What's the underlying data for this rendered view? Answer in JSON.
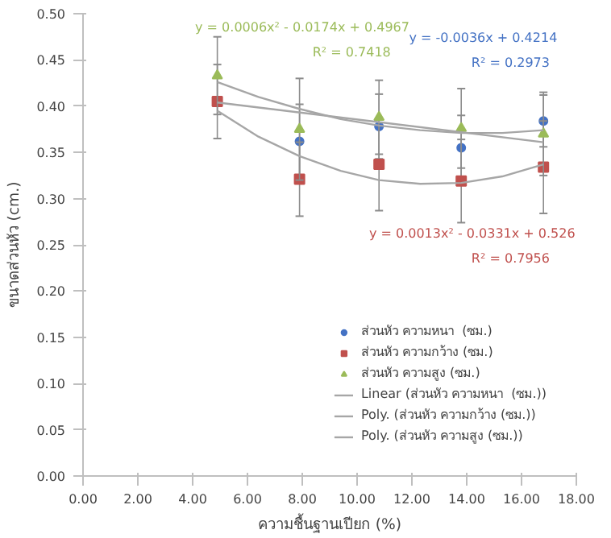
{
  "chart_data": {
    "type": "scatter",
    "xlabel": "ความชื้นฐานเปียก (%)",
    "ylabel": "ขนาดส่วนหัว (cm.)",
    "xlim": [
      0,
      18
    ],
    "ylim": [
      0,
      0.5
    ],
    "xticks": [
      {
        "value": 0,
        "label": "0.00"
      },
      {
        "value": 2,
        "label": "2.00"
      },
      {
        "value": 4,
        "label": "4.00"
      },
      {
        "value": 6,
        "label": "6.00"
      },
      {
        "value": 8,
        "label": "8.00"
      },
      {
        "value": 10,
        "label": "10.00"
      },
      {
        "value": 12,
        "label": "12.00"
      },
      {
        "value": 14,
        "label": "14.00"
      },
      {
        "value": 16,
        "label": "16.00"
      },
      {
        "value": 18,
        "label": "18.00"
      }
    ],
    "yticks": [
      {
        "value": 0,
        "label": "0.00"
      },
      {
        "value": 0.05,
        "label": "0.05"
      },
      {
        "value": 0.1,
        "label": "0.10"
      },
      {
        "value": 0.15,
        "label": "0.15"
      },
      {
        "value": 0.2,
        "label": "0.20"
      },
      {
        "value": 0.25,
        "label": "0.25"
      },
      {
        "value": 0.3,
        "label": "0.30"
      },
      {
        "value": 0.35,
        "label": "0.35"
      },
      {
        "value": 0.4,
        "label": "0.40"
      },
      {
        "value": 0.45,
        "label": "0.45"
      },
      {
        "value": 0.5,
        "label": "0.50"
      }
    ],
    "x": [
      4.9,
      7.9,
      10.8,
      13.8,
      16.8
    ],
    "grid": false,
    "legend": "bottom right",
    "series": [
      {
        "name": "ส่วนหัว ความหนา  (ซม.)",
        "color": "#4472c4",
        "marker": "circle",
        "values": [
          null,
          0.362,
          0.378,
          0.355,
          0.384
        ],
        "errors": [
          null,
          0.04,
          0.035,
          0.035,
          0.028
        ]
      },
      {
        "name": "ส่วนหัว ความกว้าง (ซม.)",
        "color": "#c0504d",
        "marker": "square",
        "values": [
          0.405,
          0.321,
          0.337,
          0.319,
          0.334
        ],
        "errors": [
          0.04,
          0.04,
          0.05,
          0.045,
          0.05
        ]
      },
      {
        "name": "ส่วนหัว ความสูง (ซม.)",
        "color": "#9bbb59",
        "marker": "triangle",
        "values": [
          0.433,
          0.375,
          0.388,
          0.376,
          0.37
        ],
        "errors": [
          0.042,
          0.055,
          0.04,
          0.043,
          0.045
        ]
      },
      {
        "name": "Linear (ส่วนหัว ความหนา  (ซม.))",
        "type": "line",
        "color": "#a6a6a6",
        "x": [
          4.9,
          16.8
        ],
        "values": [
          0.404,
          0.361
        ]
      },
      {
        "name": "Poly. (ส่วนหัว ความกว้าง (ซม.))",
        "type": "line",
        "color": "#a6a6a6",
        "x": [
          4.9,
          6.4,
          7.9,
          9.4,
          10.8,
          12.3,
          13.8,
          15.3,
          16.8
        ],
        "values": [
          0.395,
          0.367,
          0.346,
          0.33,
          0.32,
          0.316,
          0.317,
          0.324,
          0.337
        ]
      },
      {
        "name": "Poly. (ส่วนหัว ความสูง (ซม.))",
        "type": "line",
        "color": "#a6a6a6",
        "x": [
          4.9,
          6.4,
          7.9,
          9.4,
          10.8,
          12.3,
          13.8,
          15.3,
          16.8
        ],
        "values": [
          0.426,
          0.41,
          0.397,
          0.386,
          0.379,
          0.374,
          0.371,
          0.371,
          0.374
        ]
      }
    ],
    "annotations": [
      "y = 0.0006x² - 0.0174x + 0.4967",
      "R² = 0.7418",
      "y = -0.0036x + 0.4214",
      "R² = 0.2973",
      "y = 0.0013x² - 0.0331x + 0.526",
      "R² = 0.7956"
    ]
  }
}
